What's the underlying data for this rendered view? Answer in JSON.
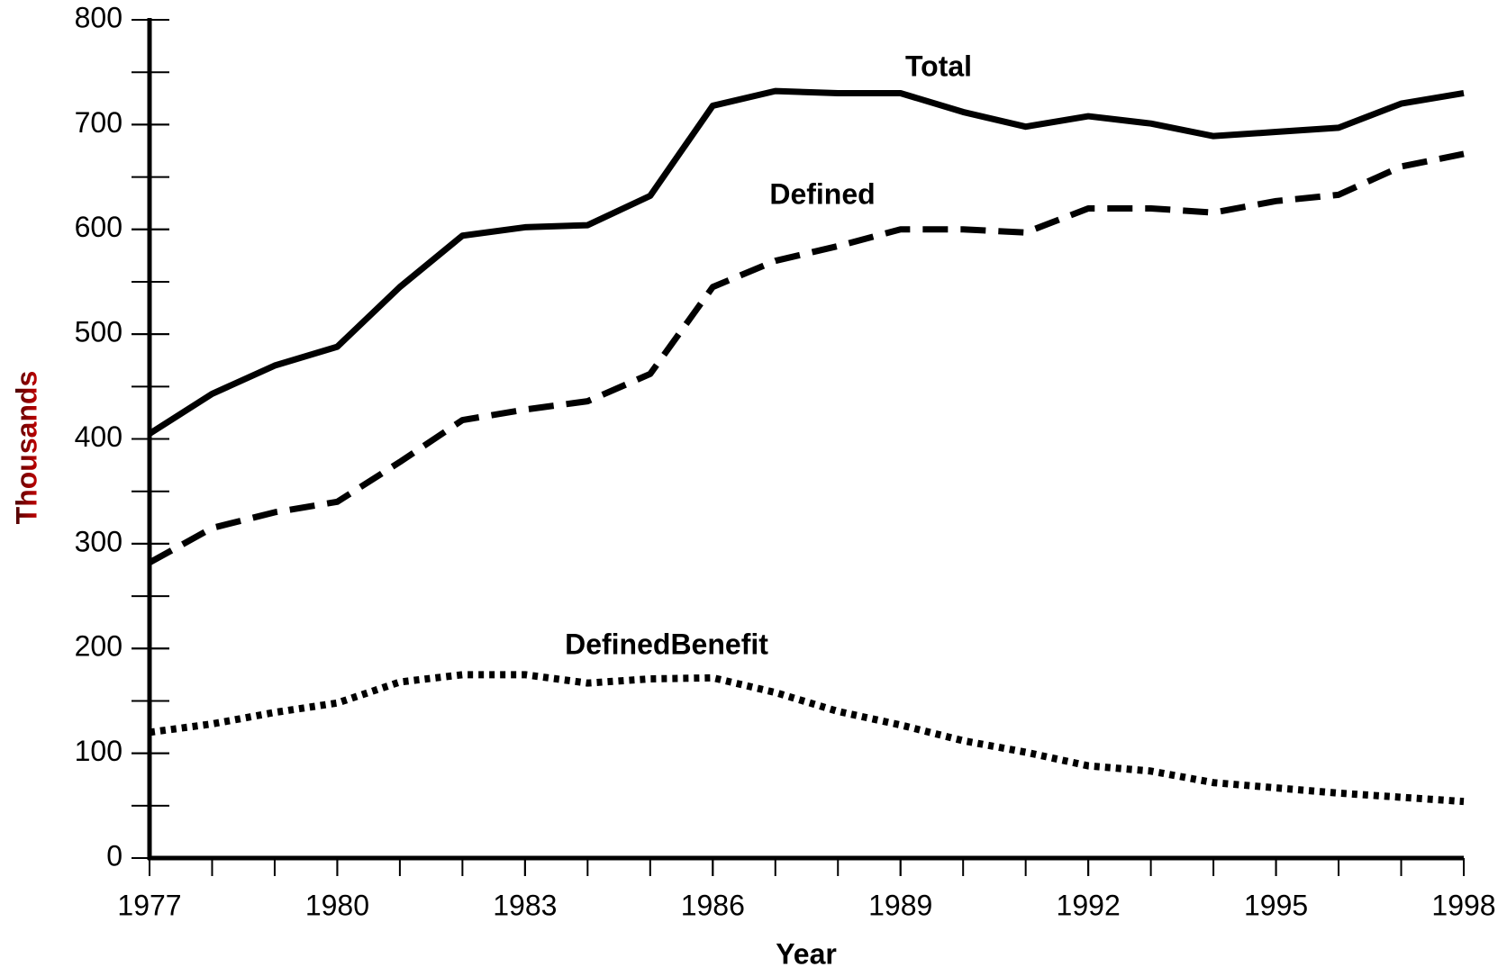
{
  "chart_data": {
    "type": "line",
    "x_label": "Year",
    "y_label": "Thousands",
    "x": [
      1977,
      1978,
      1979,
      1980,
      1981,
      1982,
      1983,
      1984,
      1985,
      1986,
      1987,
      1988,
      1989,
      1990,
      1991,
      1992,
      1993,
      1994,
      1995,
      1996,
      1997,
      1998
    ],
    "series": [
      {
        "name": "Total",
        "color": "#000000",
        "line_style": "solid",
        "values": [
          405,
          443,
          470,
          488,
          545,
          594,
          602,
          604,
          632,
          718,
          732,
          730,
          730,
          712,
          698,
          708,
          701,
          689,
          693,
          697,
          720,
          730
        ]
      },
      {
        "name": "Defined",
        "color": "#000000",
        "line_style": "dashed",
        "values": [
          282,
          315,
          330,
          340,
          378,
          418,
          428,
          436,
          462,
          545,
          570,
          584,
          600,
          600,
          597,
          620,
          620,
          616,
          627,
          633,
          660,
          672
        ]
      },
      {
        "name": "DefinedBenefit",
        "color": "#000000",
        "line_style": "dotted",
        "values": [
          120,
          128,
          139,
          148,
          168,
          175,
          175,
          167,
          171,
          172,
          158,
          140,
          127,
          112,
          101,
          88,
          83,
          72,
          67,
          62,
          58,
          54
        ]
      }
    ],
    "xlim": [
      1977,
      1998
    ],
    "xticks": [
      1977,
      1980,
      1983,
      1986,
      1989,
      1992,
      1995,
      1998
    ],
    "ylim": [
      0,
      800
    ],
    "yticks": [
      0,
      100,
      200,
      300,
      400,
      500,
      600,
      700,
      800
    ],
    "grid": false
  }
}
